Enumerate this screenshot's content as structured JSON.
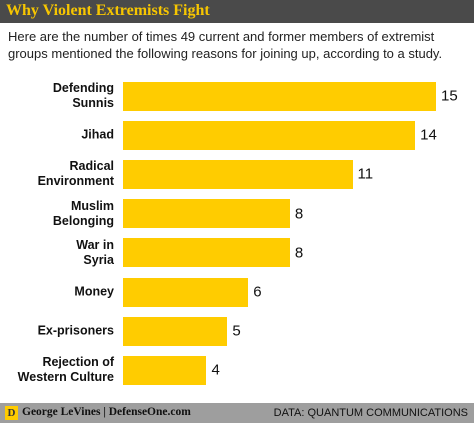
{
  "chart_data": {
    "type": "bar",
    "orientation": "horizontal",
    "title": "Why Violent Extremists Fight",
    "subtitle": "Here are the number of times 49 current and former members of extremist groups mentioned the following reasons for joining up, according to a study.",
    "categories": [
      "Defending\nSunnis",
      "Jihad",
      "Radical\nEnvironment",
      "Muslim\nBelonging",
      "War in\nSyria",
      "Money",
      "Ex-prisoners",
      "Rejection of\nWestern Culture"
    ],
    "values": [
      15,
      14,
      11,
      8,
      8,
      6,
      5,
      4
    ],
    "color": "#ffcc00",
    "logo": "D",
    "credit": "George LeVines | DefenseOne.com",
    "source": "DATA: QUANTUM COMMUNICATIONS"
  }
}
